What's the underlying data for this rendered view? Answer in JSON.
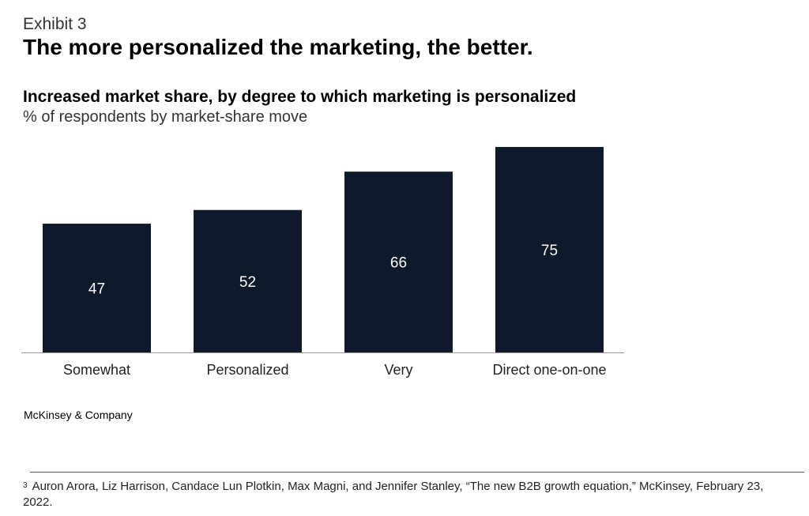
{
  "exhibit": "Exhibit 3",
  "headline": "The more personalized the marketing, the better.",
  "colors": {
    "bar": "#0e1a2b",
    "bar_label": "#ffffff",
    "axis": "#999999"
  },
  "chart_data": {
    "type": "bar",
    "title": "Increased market share, by degree to which marketing is personalized",
    "subtitle": "% of respondents by market-share move",
    "categories": [
      "Somewhat",
      "Personalized",
      "Very",
      "Direct one-on-one"
    ],
    "values": [
      47,
      52,
      66,
      75
    ],
    "ylim": [
      0,
      75
    ],
    "xlabel": "",
    "ylabel": "",
    "grid": false,
    "data_labels": true
  },
  "source": "McKinsey & Company",
  "footnote": {
    "marker": "3",
    "text": "Auron Arora, Liz Harrison, Candace Lun Plotkin, Max Magni, and Jennifer Stanley, “The new B2B growth equation,” McKinsey, February 23, 2022."
  }
}
